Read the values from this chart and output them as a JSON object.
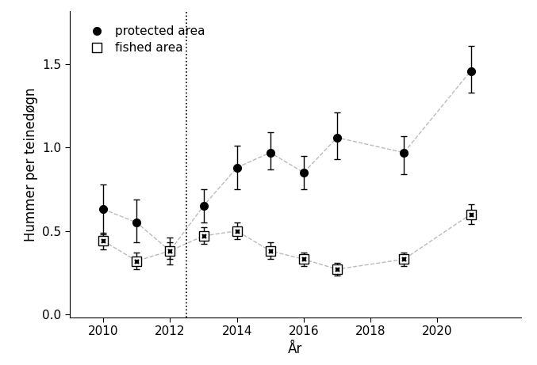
{
  "years_protected": [
    2010,
    2011,
    2012,
    2013,
    2014,
    2015,
    2016,
    2017,
    2019,
    2021
  ],
  "protected_values": [
    0.63,
    0.55,
    0.38,
    0.65,
    0.88,
    0.97,
    0.85,
    1.06,
    0.97,
    1.46
  ],
  "protected_err_upper": [
    0.15,
    0.14,
    0.08,
    0.1,
    0.13,
    0.12,
    0.1,
    0.15,
    0.1,
    0.15
  ],
  "protected_err_lower": [
    0.15,
    0.12,
    0.08,
    0.1,
    0.13,
    0.1,
    0.1,
    0.13,
    0.13,
    0.13
  ],
  "years_fished": [
    2010,
    2011,
    2012,
    2013,
    2014,
    2015,
    2016,
    2017,
    2019,
    2021
  ],
  "fished_values": [
    0.44,
    0.32,
    0.38,
    0.47,
    0.5,
    0.38,
    0.33,
    0.27,
    0.33,
    0.6
  ],
  "fished_err_upper": [
    0.05,
    0.05,
    0.05,
    0.05,
    0.05,
    0.05,
    0.04,
    0.04,
    0.04,
    0.06
  ],
  "fished_err_lower": [
    0.05,
    0.05,
    0.05,
    0.05,
    0.05,
    0.05,
    0.04,
    0.04,
    0.04,
    0.06
  ],
  "vline_x": 2012.5,
  "ylim": [
    -0.02,
    1.82
  ],
  "yticks": [
    0.0,
    0.5,
    1.0,
    1.5
  ],
  "xlim": [
    2009.0,
    2022.5
  ],
  "xticks": [
    2010,
    2012,
    2014,
    2016,
    2018,
    2020
  ],
  "xlabel": "År",
  "ylabel": "Hummer per teinedøgn",
  "line_color": "#bbbbbb",
  "legend_protected": "protected area",
  "legend_fished": "fished area",
  "background_color": "white"
}
